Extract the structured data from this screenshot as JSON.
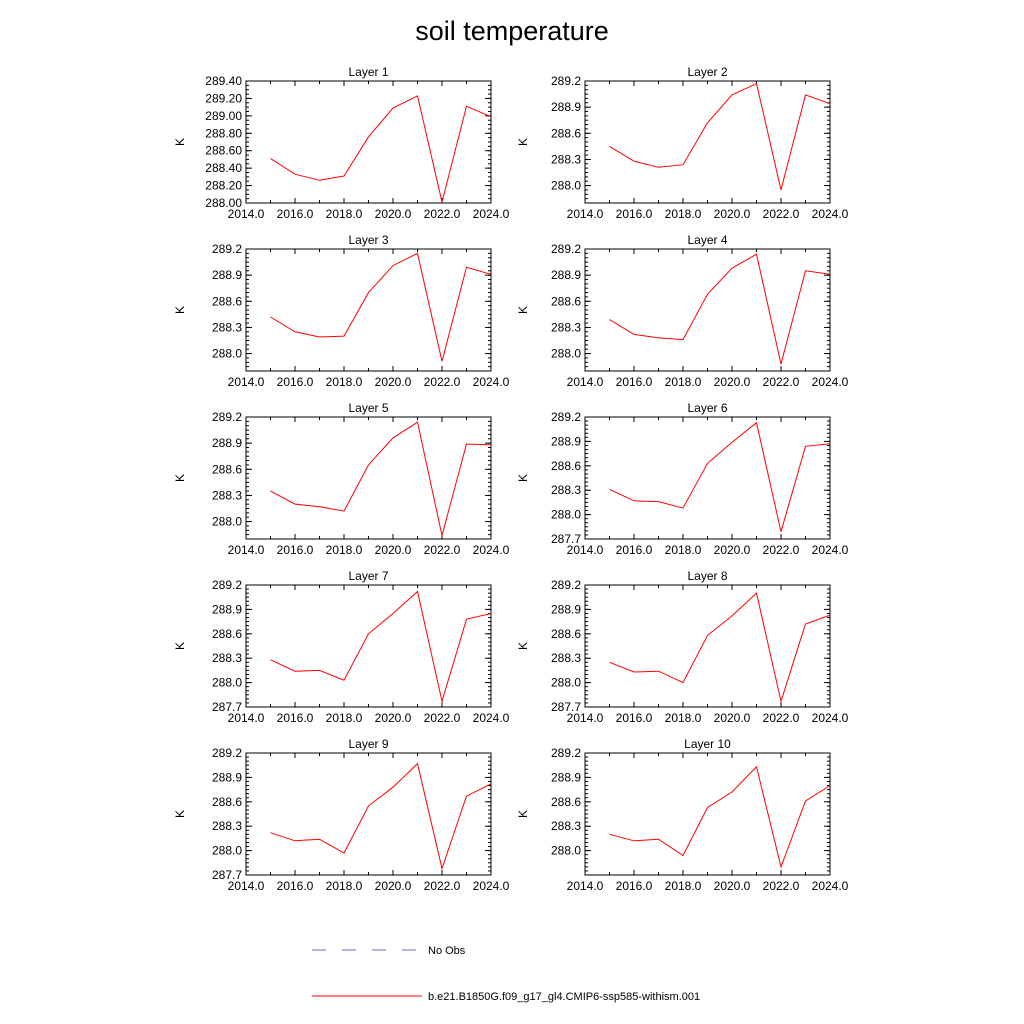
{
  "title": "soil temperature",
  "legend": [
    {
      "label": "No Obs",
      "color": "#6b6bd8",
      "dashed": true
    },
    {
      "label": "b.e21.B1850G.f09_g17_gl4.CMIP6-ssp585-withism.001",
      "color": "#ff0000",
      "dashed": false
    }
  ],
  "chart_data": [
    {
      "type": "line",
      "title": "Layer 1",
      "ylabel": "K",
      "xlim": [
        2014,
        2024
      ],
      "xticks": [
        2014,
        2016,
        2018,
        2020,
        2022,
        2024
      ],
      "xtick_labels": [
        "2014.0",
        "2016.0",
        "2018.0",
        "2020.0",
        "2022.0",
        "2024.0"
      ],
      "ylim": [
        288.0,
        289.4
      ],
      "yticks": [
        288.0,
        288.2,
        288.4,
        288.6,
        288.8,
        289.0,
        289.2,
        289.4
      ],
      "ytick_labels": [
        "288.00",
        "288.20",
        "288.40",
        "288.60",
        "288.80",
        "289.00",
        "289.20",
        "289.40"
      ],
      "series": [
        {
          "x": [
            2015,
            2016,
            2017,
            2018,
            2019,
            2020,
            2021,
            2022,
            2023,
            2024
          ],
          "y": [
            288.51,
            288.33,
            288.26,
            288.31,
            288.76,
            289.09,
            289.23,
            288.01,
            289.11,
            288.99
          ]
        }
      ]
    },
    {
      "type": "line",
      "title": "Layer 2",
      "ylabel": "K",
      "xlim": [
        2014,
        2024
      ],
      "xticks": [
        2014,
        2016,
        2018,
        2020,
        2022,
        2024
      ],
      "xtick_labels": [
        "2014.0",
        "2016.0",
        "2018.0",
        "2020.0",
        "2022.0",
        "2024.0"
      ],
      "ylim": [
        287.8,
        289.2
      ],
      "yticks": [
        288.0,
        288.3,
        288.6,
        288.9,
        289.2
      ],
      "ytick_labels": [
        "288.0",
        "288.3",
        "288.6",
        "288.9",
        "289.2"
      ],
      "series": [
        {
          "x": [
            2015,
            2016,
            2017,
            2018,
            2019,
            2020,
            2021,
            2022,
            2023,
            2024
          ],
          "y": [
            288.45,
            288.28,
            288.21,
            288.24,
            288.72,
            289.04,
            289.17,
            287.95,
            289.04,
            288.94
          ]
        }
      ]
    },
    {
      "type": "line",
      "title": "Layer 3",
      "ylabel": "K",
      "xlim": [
        2014,
        2024
      ],
      "xticks": [
        2014,
        2016,
        2018,
        2020,
        2022,
        2024
      ],
      "xtick_labels": [
        "2014.0",
        "2016.0",
        "2018.0",
        "2020.0",
        "2022.0",
        "2024.0"
      ],
      "ylim": [
        287.8,
        289.2
      ],
      "yticks": [
        288.0,
        288.3,
        288.6,
        288.9,
        289.2
      ],
      "ytick_labels": [
        "288.0",
        "288.3",
        "288.6",
        "288.9",
        "289.2"
      ],
      "series": [
        {
          "x": [
            2015,
            2016,
            2017,
            2018,
            2019,
            2020,
            2021,
            2022,
            2023,
            2024
          ],
          "y": [
            288.42,
            288.25,
            288.19,
            288.2,
            288.7,
            289.01,
            289.15,
            287.91,
            288.99,
            288.91
          ]
        }
      ]
    },
    {
      "type": "line",
      "title": "Layer 4",
      "ylabel": "K",
      "xlim": [
        2014,
        2024
      ],
      "xticks": [
        2014,
        2016,
        2018,
        2020,
        2022,
        2024
      ],
      "xtick_labels": [
        "2014.0",
        "2016.0",
        "2018.0",
        "2020.0",
        "2022.0",
        "2024.0"
      ],
      "ylim": [
        287.8,
        289.2
      ],
      "yticks": [
        288.0,
        288.3,
        288.6,
        288.9,
        289.2
      ],
      "ytick_labels": [
        "288.0",
        "288.3",
        "288.6",
        "288.9",
        "289.2"
      ],
      "series": [
        {
          "x": [
            2015,
            2016,
            2017,
            2018,
            2019,
            2020,
            2021,
            2022,
            2023,
            2024
          ],
          "y": [
            288.39,
            288.22,
            288.18,
            288.16,
            288.68,
            288.98,
            289.14,
            287.88,
            288.95,
            288.91
          ]
        }
      ]
    },
    {
      "type": "line",
      "title": "Layer 5",
      "ylabel": "K",
      "xlim": [
        2014,
        2024
      ],
      "xticks": [
        2014,
        2016,
        2018,
        2020,
        2022,
        2024
      ],
      "xtick_labels": [
        "2014.0",
        "2016.0",
        "2018.0",
        "2020.0",
        "2022.0",
        "2024.0"
      ],
      "ylim": [
        287.8,
        289.2
      ],
      "yticks": [
        288.0,
        288.3,
        288.6,
        288.9,
        289.2
      ],
      "ytick_labels": [
        "288.0",
        "288.3",
        "288.6",
        "288.9",
        "289.2"
      ],
      "series": [
        {
          "x": [
            2015,
            2016,
            2017,
            2018,
            2019,
            2020,
            2021,
            2022,
            2023,
            2024
          ],
          "y": [
            288.35,
            288.2,
            288.17,
            288.12,
            288.65,
            288.96,
            289.14,
            287.84,
            288.89,
            288.88
          ]
        }
      ]
    },
    {
      "type": "line",
      "title": "Layer 6",
      "ylabel": "K",
      "xlim": [
        2014,
        2024
      ],
      "xticks": [
        2014,
        2016,
        2018,
        2020,
        2022,
        2024
      ],
      "xtick_labels": [
        "2014.0",
        "2016.0",
        "2018.0",
        "2020.0",
        "2022.0",
        "2024.0"
      ],
      "ylim": [
        287.7,
        289.2
      ],
      "yticks": [
        287.7,
        288.0,
        288.3,
        288.6,
        288.9,
        289.2
      ],
      "ytick_labels": [
        "287.7",
        "288.0",
        "288.3",
        "288.6",
        "288.9",
        "289.2"
      ],
      "series": [
        {
          "x": [
            2015,
            2016,
            2017,
            2018,
            2019,
            2020,
            2021,
            2022,
            2023,
            2024
          ],
          "y": [
            288.31,
            288.17,
            288.16,
            288.08,
            288.63,
            288.89,
            289.13,
            287.79,
            288.84,
            288.87
          ]
        }
      ]
    },
    {
      "type": "line",
      "title": "Layer 7",
      "ylabel": "K",
      "xlim": [
        2014,
        2024
      ],
      "xticks": [
        2014,
        2016,
        2018,
        2020,
        2022,
        2024
      ],
      "xtick_labels": [
        "2014.0",
        "2016.0",
        "2018.0",
        "2020.0",
        "2022.0",
        "2024.0"
      ],
      "ylim": [
        287.7,
        289.2
      ],
      "yticks": [
        287.7,
        288.0,
        288.3,
        288.6,
        288.9,
        289.2
      ],
      "ytick_labels": [
        "287.7",
        "288.0",
        "288.3",
        "288.6",
        "288.9",
        "289.2"
      ],
      "series": [
        {
          "x": [
            2015,
            2016,
            2017,
            2018,
            2019,
            2020,
            2021,
            2022,
            2023,
            2024
          ],
          "y": [
            288.28,
            288.14,
            288.15,
            288.03,
            288.6,
            288.85,
            289.12,
            287.77,
            288.78,
            288.85
          ]
        }
      ]
    },
    {
      "type": "line",
      "title": "Layer 8",
      "ylabel": "K",
      "xlim": [
        2014,
        2024
      ],
      "xticks": [
        2014,
        2016,
        2018,
        2020,
        2022,
        2024
      ],
      "xtick_labels": [
        "2014.0",
        "2016.0",
        "2018.0",
        "2020.0",
        "2022.0",
        "2024.0"
      ],
      "ylim": [
        287.7,
        289.2
      ],
      "yticks": [
        287.7,
        288.0,
        288.3,
        288.6,
        288.9,
        289.2
      ],
      "ytick_labels": [
        "287.7",
        "288.0",
        "288.3",
        "288.6",
        "288.9",
        "289.2"
      ],
      "series": [
        {
          "x": [
            2015,
            2016,
            2017,
            2018,
            2019,
            2020,
            2021,
            2022,
            2023,
            2024
          ],
          "y": [
            288.25,
            288.13,
            288.14,
            288.0,
            288.58,
            288.82,
            289.1,
            287.77,
            288.72,
            288.83
          ]
        }
      ]
    },
    {
      "type": "line",
      "title": "Layer 9",
      "ylabel": "K",
      "xlim": [
        2014,
        2024
      ],
      "xticks": [
        2014,
        2016,
        2018,
        2020,
        2022,
        2024
      ],
      "xtick_labels": [
        "2014.0",
        "2016.0",
        "2018.0",
        "2020.0",
        "2022.0",
        "2024.0"
      ],
      "ylim": [
        287.7,
        289.2
      ],
      "yticks": [
        287.7,
        288.0,
        288.3,
        288.6,
        288.9,
        289.2
      ],
      "ytick_labels": [
        "287.7",
        "288.0",
        "288.3",
        "288.6",
        "288.9",
        "289.2"
      ],
      "series": [
        {
          "x": [
            2015,
            2016,
            2017,
            2018,
            2019,
            2020,
            2021,
            2022,
            2023,
            2024
          ],
          "y": [
            288.22,
            288.12,
            288.14,
            287.97,
            288.55,
            288.78,
            289.07,
            287.78,
            288.67,
            288.82
          ]
        }
      ]
    },
    {
      "type": "line",
      "title": "Layer 10",
      "ylabel": "K",
      "xlim": [
        2014,
        2024
      ],
      "xticks": [
        2014,
        2016,
        2018,
        2020,
        2022,
        2024
      ],
      "xtick_labels": [
        "2014.0",
        "2016.0",
        "2018.0",
        "2020.0",
        "2022.0",
        "2024.0"
      ],
      "ylim": [
        287.7,
        289.2
      ],
      "yticks": [
        288.0,
        288.3,
        288.6,
        288.9,
        289.2
      ],
      "ytick_labels": [
        "288.0",
        "288.3",
        "288.6",
        "288.9",
        "289.2"
      ],
      "series": [
        {
          "x": [
            2015,
            2016,
            2017,
            2018,
            2019,
            2020,
            2021,
            2022,
            2023,
            2024
          ],
          "y": [
            288.2,
            288.12,
            288.14,
            287.94,
            288.53,
            288.72,
            289.03,
            287.8,
            288.61,
            288.8
          ]
        }
      ]
    }
  ]
}
